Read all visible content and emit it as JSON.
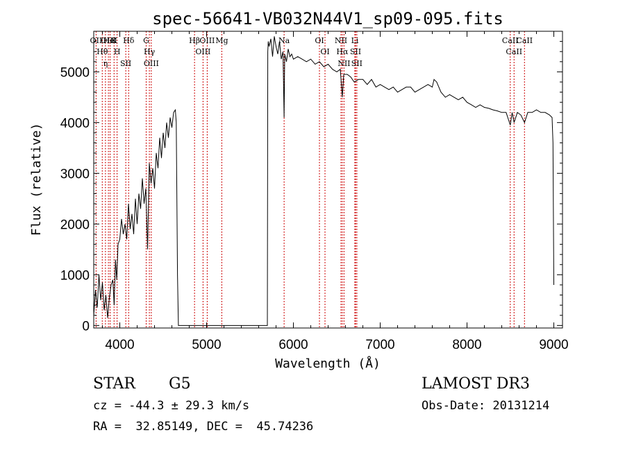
{
  "chart_data": {
    "type": "line",
    "title": "spec-56641-VB032N44V1_sp09-095.fits",
    "xlabel": "Wavelength (Å)",
    "ylabel": "Flux (relative)",
    "xlim": [
      3700,
      9100
    ],
    "ylim": [
      -50,
      5800
    ],
    "xticks": [
      4000,
      5000,
      6000,
      7000,
      8000,
      9000
    ],
    "yticks": [
      0,
      1000,
      2000,
      3000,
      4000,
      5000
    ],
    "xtick_labels": [
      "4000",
      "5000",
      "6000",
      "7000",
      "8000",
      "9000"
    ],
    "ytick_labels": [
      "0",
      "1000",
      "2000",
      "3000",
      "4000",
      "5000"
    ],
    "grid": false,
    "series": [
      {
        "name": "flux",
        "x": [
          3700,
          3720,
          3740,
          3760,
          3780,
          3800,
          3820,
          3840,
          3860,
          3880,
          3900,
          3920,
          3935,
          3950,
          3965,
          3980,
          4000,
          4020,
          4040,
          4060,
          4080,
          4100,
          4120,
          4140,
          4160,
          4180,
          4200,
          4220,
          4240,
          4260,
          4280,
          4300,
          4320,
          4340,
          4360,
          4380,
          4400,
          4420,
          4440,
          4460,
          4480,
          4500,
          4520,
          4540,
          4560,
          4580,
          4600,
          4620,
          4640,
          4650,
          4660,
          4665,
          4675,
          4700,
          5000,
          5500,
          5700,
          5705,
          5710,
          5720,
          5740,
          5760,
          5780,
          5800,
          5820,
          5840,
          5860,
          5880,
          5893,
          5900,
          5920,
          5940,
          5960,
          5980,
          6000,
          6050,
          6100,
          6150,
          6200,
          6250,
          6300,
          6350,
          6400,
          6450,
          6500,
          6540,
          6563,
          6580,
          6620,
          6660,
          6700,
          6750,
          6800,
          6850,
          6900,
          6950,
          7000,
          7050,
          7100,
          7150,
          7200,
          7250,
          7300,
          7350,
          7400,
          7450,
          7500,
          7550,
          7600,
          7620,
          7650,
          7700,
          7750,
          7800,
          7850,
          7900,
          7950,
          8000,
          8050,
          8100,
          8150,
          8200,
          8250,
          8300,
          8350,
          8400,
          8450,
          8498,
          8520,
          8542,
          8580,
          8620,
          8662,
          8700,
          8750,
          8800,
          8850,
          8900,
          8950,
          8980,
          8990,
          9000
        ],
        "y": [
          200,
          700,
          350,
          1000,
          500,
          850,
          300,
          600,
          150,
          550,
          800,
          900,
          400,
          1300,
          900,
          1600,
          1700,
          2100,
          1800,
          2000,
          1700,
          2400,
          1900,
          2200,
          1800,
          2500,
          2000,
          2600,
          2300,
          2900,
          2400,
          2700,
          1500,
          3200,
          2800,
          3100,
          2700,
          3400,
          3100,
          3700,
          3300,
          3800,
          3500,
          4000,
          3700,
          4100,
          3900,
          4200,
          4250,
          4000,
          2000,
          1000,
          0,
          0,
          0,
          0,
          0,
          5400,
          5600,
          5500,
          5650,
          5300,
          5700,
          5500,
          5350,
          5600,
          5250,
          5400,
          4100,
          5350,
          5200,
          5450,
          5300,
          5350,
          5250,
          5300,
          5250,
          5200,
          5250,
          5150,
          5200,
          5100,
          5150,
          5050,
          5000,
          5050,
          4500,
          4950,
          4950,
          4900,
          4800,
          4850,
          4850,
          4750,
          4850,
          4700,
          4750,
          4700,
          4650,
          4700,
          4600,
          4650,
          4700,
          4700,
          4600,
          4650,
          4700,
          4750,
          4700,
          4850,
          4800,
          4600,
          4500,
          4550,
          4500,
          4450,
          4500,
          4400,
          4350,
          4300,
          4350,
          4300,
          4280,
          4250,
          4230,
          4200,
          4200,
          3950,
          4200,
          4000,
          4200,
          4150,
          4000,
          4200,
          4200,
          4250,
          4200,
          4200,
          4150,
          4100,
          3600,
          800
        ]
      }
    ],
    "lines": [
      {
        "label": "Hθ",
        "wavelength": 3798
      },
      {
        "label": "OII",
        "wavelength": 3727
      },
      {
        "label": "OIII",
        "wavelength": 3869
      },
      {
        "label": "HeI",
        "wavelength": 3889
      },
      {
        "label": "η",
        "wavelength": 3835
      },
      {
        "label": "K",
        "wavelength": 3934
      },
      {
        "label": "H",
        "wavelength": 3969
      },
      {
        "label": "SII",
        "wavelength": 4069
      },
      {
        "label": "Hδ",
        "wavelength": 4102
      },
      {
        "label": "OIII",
        "wavelength": 4363
      },
      {
        "label": "Hγ",
        "wavelength": 4341
      },
      {
        "label": "G",
        "wavelength": 4304
      },
      {
        "label": "Hβ",
        "wavelength": 4861
      },
      {
        "label": "OIII",
        "wavelength": 4959
      },
      {
        "label": "OIII",
        "wavelength": 5007
      },
      {
        "label": "Mg",
        "wavelength": 5175
      },
      {
        "label": "Na",
        "wavelength": 5893
      },
      {
        "label": "OI",
        "wavelength": 6300
      },
      {
        "label": "OI",
        "wavelength": 6364
      },
      {
        "label": "Hα",
        "wavelength": 6563
      },
      {
        "label": "NII",
        "wavelength": 6548
      },
      {
        "label": "NII",
        "wavelength": 6583
      },
      {
        "label": "SII",
        "wavelength": 6716
      },
      {
        "label": "SII",
        "wavelength": 6731
      },
      {
        "label": "Li",
        "wavelength": 6708
      },
      {
        "label": "CaII",
        "wavelength": 8498
      },
      {
        "label": "CaII",
        "wavelength": 8542
      },
      {
        "label": "CaII",
        "wavelength": 8662
      }
    ]
  },
  "footer": {
    "object_class": "STAR",
    "subclass": "G5",
    "survey": "LAMOST DR3",
    "redshift": "cz = -44.3 ± 29.3 km/s",
    "obs_date": "Obs-Date: 20131214",
    "coords": "RA =  32.85149, DEC =  45.74236"
  }
}
